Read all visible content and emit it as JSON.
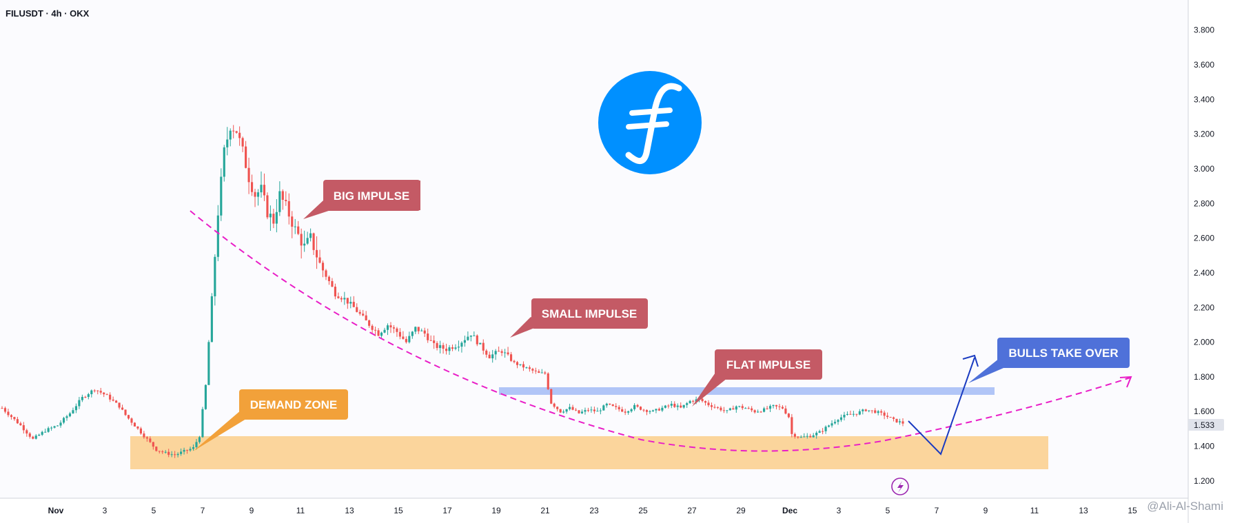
{
  "header": {
    "symbol": "FILUSDT · 4h · OKX"
  },
  "colors": {
    "up": "#26a69a",
    "down": "#ef5350",
    "demand_zone": "#fbd59c",
    "resistance": "#b1c5f7",
    "curve": "#e91ec7",
    "arrow": "#1a3bc1",
    "callout_red": "#c45a65",
    "callout_orange": "#f2a13a",
    "callout_blue": "#4f71d9",
    "logo": "#0090ff"
  },
  "chart_data": {
    "type": "candlestick",
    "ylim": [
      1.1,
      3.95
    ],
    "yticks": [
      "3.800",
      "3.600",
      "3.400",
      "3.200",
      "3.000",
      "2.800",
      "2.600",
      "2.400",
      "2.200",
      "2.000",
      "1.800",
      "1.600",
      "1.400",
      "1.200"
    ],
    "xticks": [
      "Nov",
      "3",
      "5",
      "7",
      "9",
      "11",
      "13",
      "15",
      "17",
      "19",
      "21",
      "23",
      "25",
      "27",
      "29",
      "Dec",
      "3",
      "5",
      "7",
      "9",
      "11",
      "13",
      "15"
    ],
    "last_price": "1.533",
    "path_points": [
      [
        0,
        1.62
      ],
      [
        6,
        1.52
      ],
      [
        10,
        1.44
      ],
      [
        14,
        1.49
      ],
      [
        18,
        1.52
      ],
      [
        22,
        1.59
      ],
      [
        26,
        1.68
      ],
      [
        30,
        1.73
      ],
      [
        34,
        1.69
      ],
      [
        38,
        1.63
      ],
      [
        40,
        1.58
      ],
      [
        43,
        1.52
      ],
      [
        46,
        1.46
      ],
      [
        48,
        1.42
      ],
      [
        50,
        1.38
      ],
      [
        53,
        1.36
      ],
      [
        56,
        1.35
      ],
      [
        59,
        1.37
      ],
      [
        62,
        1.39
      ],
      [
        64,
        1.46
      ],
      [
        66,
        1.75
      ],
      [
        68,
        2.25
      ],
      [
        70,
        2.75
      ],
      [
        72,
        3.1
      ],
      [
        74,
        3.25
      ],
      [
        76,
        3.22
      ],
      [
        78,
        3.1
      ],
      [
        80,
        2.95
      ],
      [
        82,
        2.85
      ],
      [
        84,
        2.88
      ],
      [
        86,
        2.75
      ],
      [
        88,
        2.7
      ],
      [
        90,
        2.85
      ],
      [
        92,
        2.78
      ],
      [
        95,
        2.65
      ],
      [
        98,
        2.55
      ],
      [
        100,
        2.6
      ],
      [
        103,
        2.45
      ],
      [
        106,
        2.35
      ],
      [
        108,
        2.28
      ],
      [
        111,
        2.25
      ],
      [
        114,
        2.2
      ],
      [
        118,
        2.12
      ],
      [
        122,
        2.05
      ],
      [
        125,
        2.1
      ],
      [
        128,
        2.06
      ],
      [
        131,
        2.0
      ],
      [
        134,
        2.08
      ],
      [
        137,
        2.05
      ],
      [
        140,
        1.98
      ],
      [
        144,
        1.96
      ],
      [
        148,
        1.99
      ],
      [
        152,
        2.05
      ],
      [
        155,
        1.98
      ],
      [
        158,
        1.92
      ],
      [
        162,
        1.95
      ],
      [
        166,
        1.88
      ],
      [
        170,
        1.85
      ],
      [
        174,
        1.82
      ],
      [
        176,
        1.82
      ],
      [
        178,
        1.65
      ],
      [
        181,
        1.6
      ],
      [
        184,
        1.62
      ],
      [
        187,
        1.59
      ],
      [
        190,
        1.61
      ],
      [
        193,
        1.6
      ],
      [
        196,
        1.64
      ],
      [
        199,
        1.62
      ],
      [
        202,
        1.6
      ],
      [
        205,
        1.63
      ],
      [
        208,
        1.61
      ],
      [
        211,
        1.6
      ],
      [
        214,
        1.62
      ],
      [
        217,
        1.64
      ],
      [
        220,
        1.62
      ],
      [
        223,
        1.66
      ],
      [
        226,
        1.67
      ],
      [
        229,
        1.64
      ],
      [
        232,
        1.62
      ],
      [
        235,
        1.6
      ],
      [
        238,
        1.63
      ],
      [
        241,
        1.62
      ],
      [
        244,
        1.6
      ],
      [
        247,
        1.61
      ],
      [
        250,
        1.63
      ],
      [
        253,
        1.62
      ],
      [
        255,
        1.57
      ],
      [
        256,
        1.47
      ],
      [
        259,
        1.45
      ],
      [
        262,
        1.46
      ],
      [
        265,
        1.48
      ],
      [
        268,
        1.52
      ],
      [
        271,
        1.56
      ],
      [
        274,
        1.58
      ],
      [
        277,
        1.59
      ],
      [
        280,
        1.61
      ],
      [
        283,
        1.6
      ],
      [
        286,
        1.58
      ],
      [
        289,
        1.55
      ],
      [
        292,
        1.533
      ]
    ]
  },
  "callouts": {
    "big_impulse": "BIG IMPULSE",
    "small_impulse": "SMALL IMPULSE",
    "flat_impulse": "FLAT IMPULSE",
    "demand_zone": "DEMAND ZONE",
    "bulls_take_over": "BULLS TAKE OVER"
  },
  "logo": {
    "icon": "filecoin-logo-icon"
  },
  "watermark": "@Ali-Al-Shami",
  "bottom_icon": "lightning-icon"
}
